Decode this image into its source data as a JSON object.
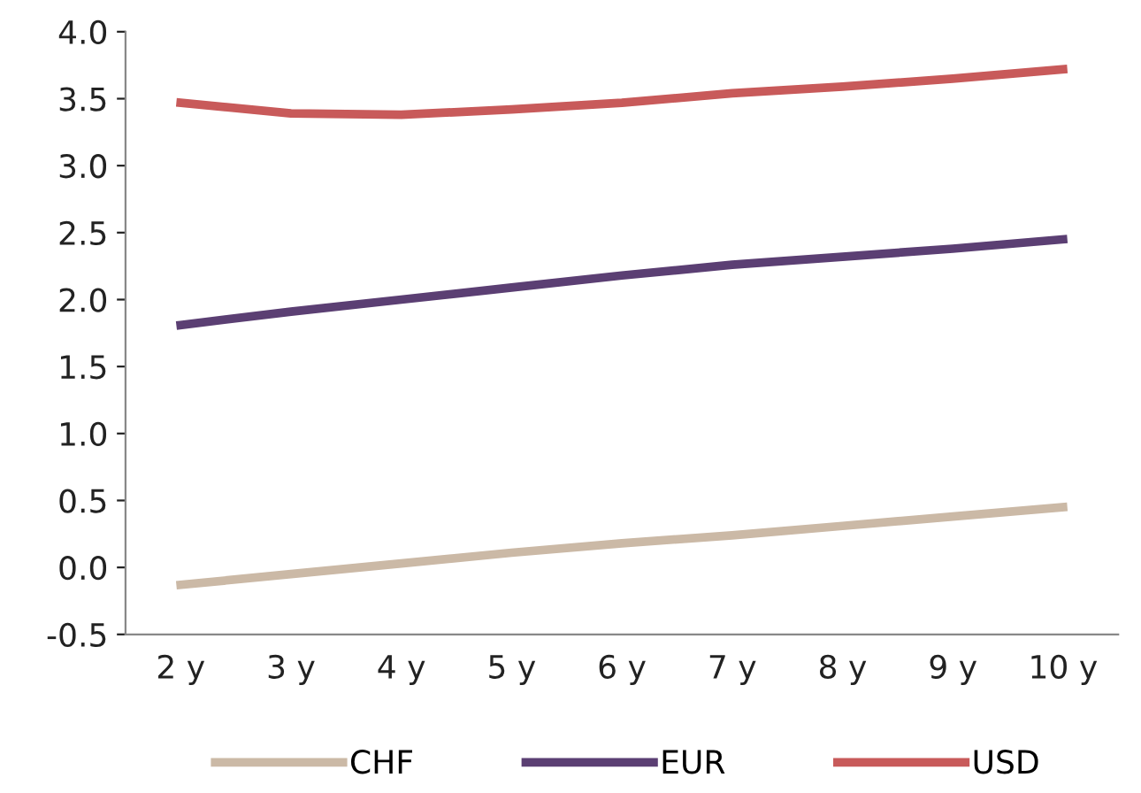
{
  "chart_data": {
    "type": "line",
    "categories": [
      "2 y",
      "3 y",
      "4 y",
      "5 y",
      "6 y",
      "7 y",
      "8 y",
      "9 y",
      "10 y"
    ],
    "series": [
      {
        "name": "CHF",
        "color": "#cbb9a6",
        "values": [
          -0.13,
          -0.05,
          0.03,
          0.11,
          0.18,
          0.24,
          0.31,
          0.38,
          0.45
        ]
      },
      {
        "name": "EUR",
        "color": "#5b3f73",
        "values": [
          1.81,
          1.91,
          2.0,
          2.09,
          2.18,
          2.26,
          2.32,
          2.38,
          2.45
        ]
      },
      {
        "name": "USD",
        "color": "#c85a5a",
        "values": [
          3.47,
          3.39,
          3.38,
          3.42,
          3.47,
          3.54,
          3.59,
          3.65,
          3.72
        ]
      }
    ],
    "ylim": [
      -0.5,
      4.0
    ],
    "yticks": [
      {
        "value": -0.5,
        "label": "-0.5"
      },
      {
        "value": 0,
        "label": "0.0"
      },
      {
        "value": 0.5,
        "label": "0.5"
      },
      {
        "value": 1,
        "label": "1.0"
      },
      {
        "value": 1.5,
        "label": "1.5"
      },
      {
        "value": 2,
        "label": "2.0"
      },
      {
        "value": 2.5,
        "label": "2.5"
      },
      {
        "value": 3,
        "label": "3.0"
      },
      {
        "value": 3.5,
        "label": "3.5"
      },
      {
        "value": 4,
        "label": "4.0"
      }
    ],
    "grid": false,
    "legend": "bottom",
    "marker": "none",
    "line_style": "solid"
  }
}
